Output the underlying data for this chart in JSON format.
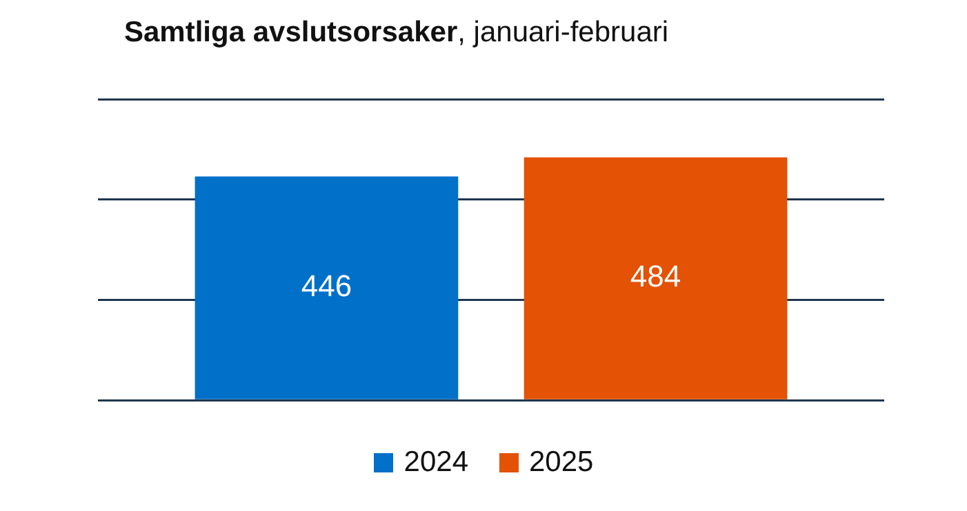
{
  "chart_data": {
    "type": "bar",
    "title": "Samtliga avslutsorsaker, januari-februari",
    "categories": [
      null
    ],
    "series": [
      {
        "name": "2024",
        "color": "#0070c9",
        "values": [
          446
        ]
      },
      {
        "name": "2025",
        "color": "#e35205",
        "values": [
          484
        ]
      }
    ],
    "ylim": [
      0,
      600
    ],
    "yticks": [
      {
        "value": 0,
        "label": null
      },
      {
        "value": 200,
        "label": null
      },
      {
        "value": 400,
        "label": null
      },
      {
        "value": 600,
        "label": null
      }
    ],
    "grid": "y",
    "legend": "bottom",
    "data_labels": true
  }
}
